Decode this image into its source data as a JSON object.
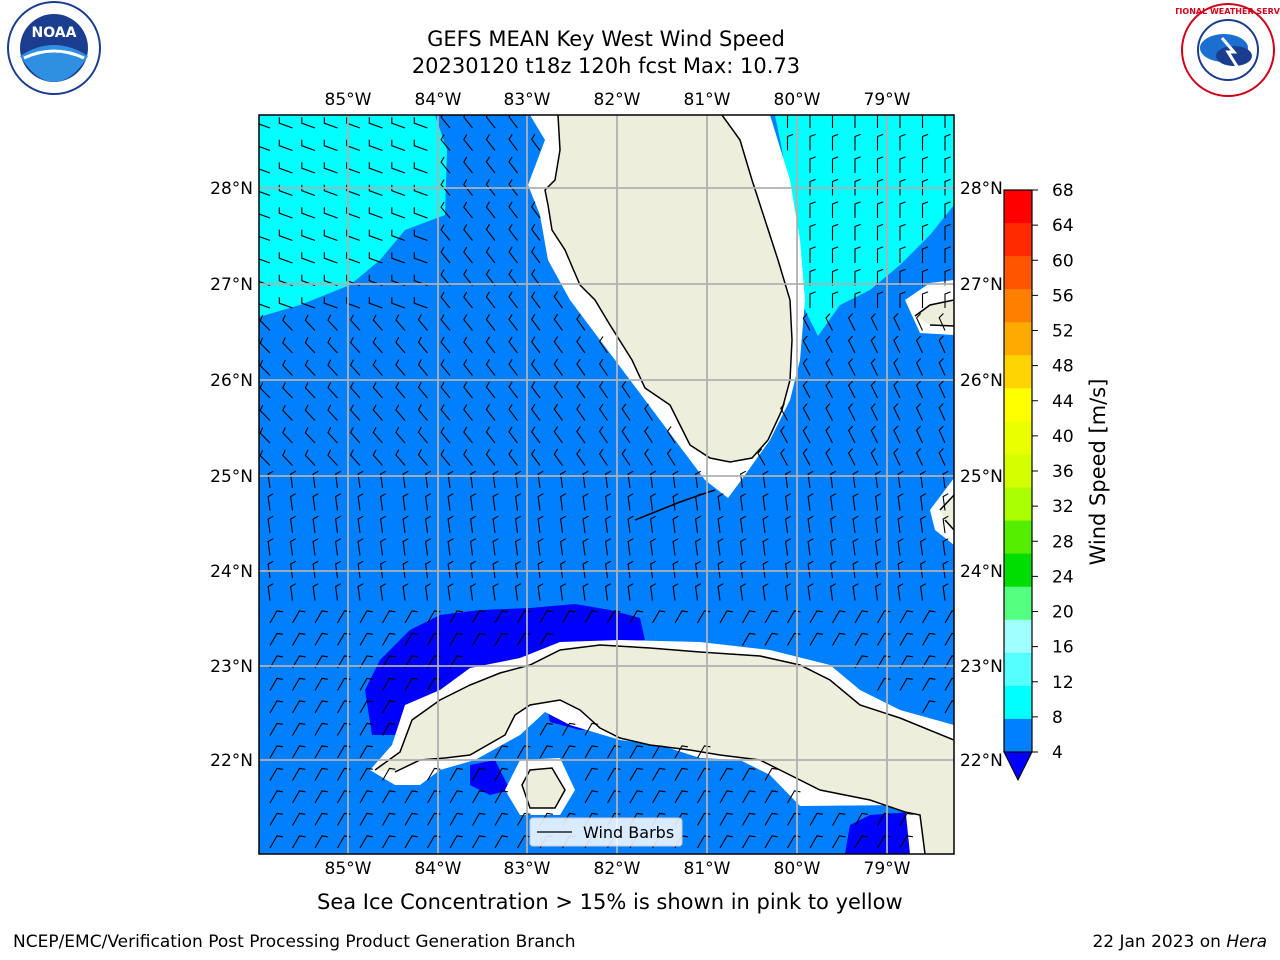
{
  "title": {
    "line1": "GEFS MEAN Key West Wind Speed",
    "line2": "20230120 t18z 120h fcst   Max: 10.73"
  },
  "map": {
    "lon_ticks": [
      "85°W",
      "84°W",
      "83°W",
      "82°W",
      "81°W",
      "80°W",
      "79°W"
    ],
    "lat_ticks": [
      "28°N",
      "27°N",
      "26°N",
      "25°N",
      "24°N",
      "23°N",
      "22°N"
    ],
    "legend_label": "Wind Barbs",
    "colors": {
      "ocean_4_8": "#0080ff",
      "ocean_8_12": "#00ffff",
      "ocean_below_4": "#0000ff",
      "land": "#eeeedc",
      "grid": "#b0b0b0"
    }
  },
  "colorbar": {
    "label": "Wind Speed [m/s]",
    "ticks": [
      "68",
      "64",
      "60",
      "56",
      "52",
      "48",
      "44",
      "40",
      "36",
      "32",
      "28",
      "24",
      "20",
      "16",
      "12",
      "8",
      "4"
    ],
    "colors": [
      "#ff0000",
      "#ff2a00",
      "#ff5500",
      "#ff7f00",
      "#ffaa00",
      "#ffd400",
      "#ffff00",
      "#eaff00",
      "#d4ff00",
      "#aaff00",
      "#55ee00",
      "#00dd00",
      "#55ff80",
      "#a0ffff",
      "#55ffff",
      "#00ffff",
      "#0080ff"
    ],
    "under_color": "#0000ff"
  },
  "caption": "Sea Ice Concentration > 15% is shown in pink to yellow",
  "footer": {
    "left": "NCEP/EMC/Verification Post Processing Product Generation Branch",
    "right_date": "22 Jan 2023 on ",
    "right_host": "Hera"
  },
  "logos": {
    "noaa_text": "NOAA",
    "nws_text": "NATIONAL WEATHER SERVICE"
  }
}
